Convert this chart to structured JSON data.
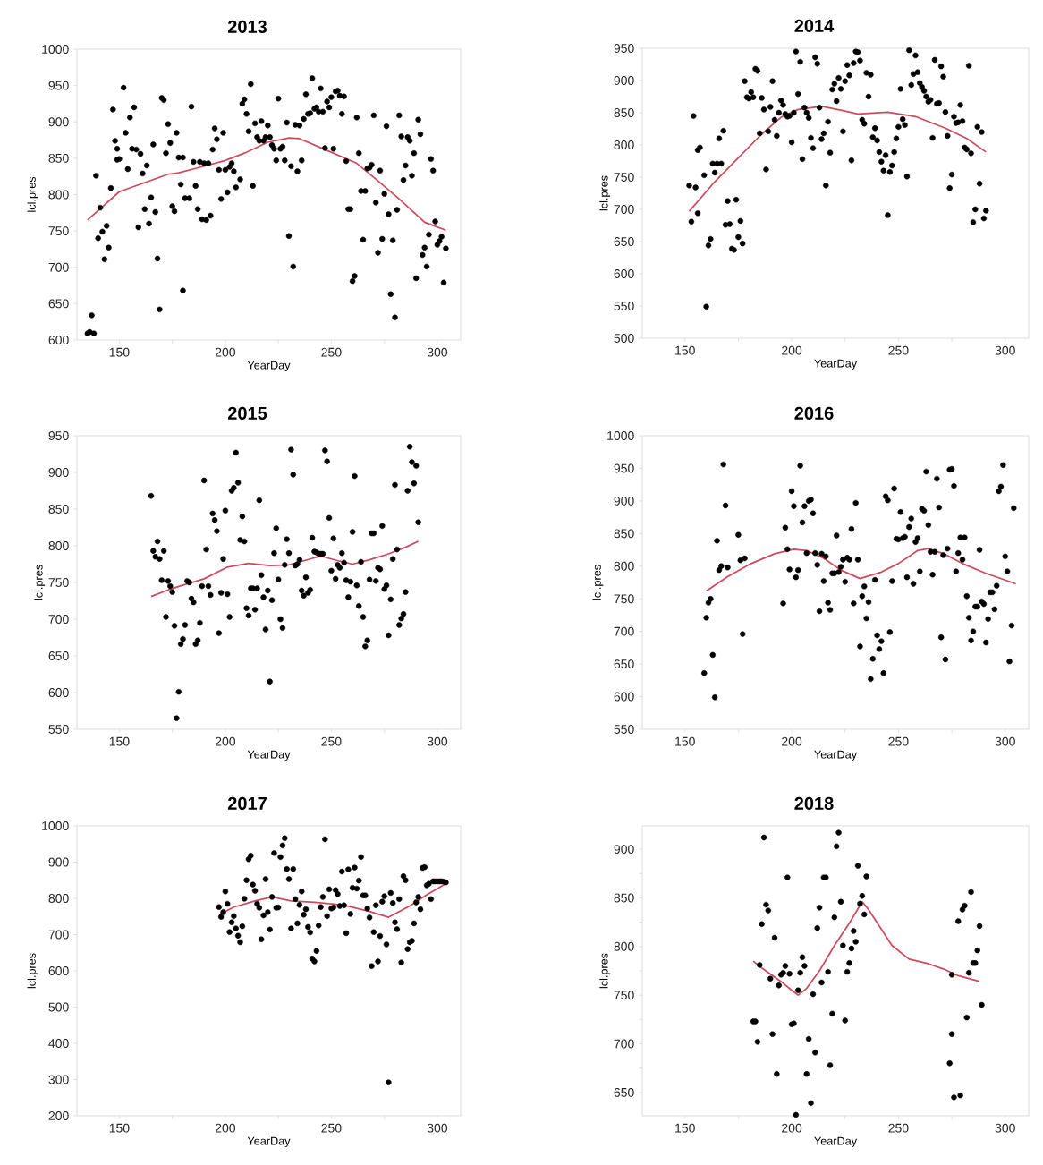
{
  "chart_data": [
    {
      "type": "scatter",
      "title": "2013",
      "xlabel": "YearDay",
      "ylabel": "lcl.pres",
      "xlim": [
        130,
        311
      ],
      "ylim": [
        600,
        1000
      ],
      "xticks": [
        150,
        {
          "value": 175,
          "label": null
        },
        200,
        {
          "value": 225,
          "label": null
        },
        250,
        {
          "value": 275,
          "label": null
        },
        300
      ],
      "yticks": [
        600,
        650,
        700,
        750,
        800,
        850,
        900,
        950,
        1000
      ],
      "series": [
        {
          "type": "scatter",
          "marker": "circle",
          "color": "#000000",
          "x": [
            135,
            136,
            138,
            137,
            139,
            140,
            141,
            142,
            143,
            144,
            145,
            146,
            147,
            148,
            149,
            149,
            150,
            152,
            153,
            154,
            155,
            156,
            157,
            158,
            159,
            160,
            161,
            162,
            163,
            164,
            165,
            166,
            167,
            168,
            169,
            170,
            171,
            172,
            173,
            174,
            175,
            176,
            177,
            178,
            179,
            180,
            180,
            181,
            183,
            184,
            185,
            186,
            187,
            188,
            189,
            190,
            191,
            192,
            193,
            194,
            195,
            196,
            197,
            198,
            199,
            200,
            201,
            202,
            203,
            204,
            205,
            207,
            208,
            209,
            210,
            211,
            212,
            213,
            214,
            215,
            216,
            217,
            218,
            219,
            220,
            221,
            222,
            223,
            224,
            225,
            226,
            227,
            228,
            229,
            230,
            231,
            232,
            233,
            234,
            235,
            236,
            237,
            238,
            239,
            240,
            241,
            242,
            243,
            244,
            245,
            246,
            247,
            248,
            249,
            250,
            251,
            252,
            253,
            254,
            255,
            256,
            257,
            258,
            259,
            260,
            261,
            262,
            263,
            264,
            265,
            266,
            267,
            268,
            269,
            270,
            271,
            272,
            273,
            274,
            275,
            276,
            277,
            278,
            279,
            280,
            281,
            282,
            283,
            284,
            285,
            286,
            287,
            288,
            289,
            290,
            291,
            292,
            293,
            294,
            295,
            296,
            297,
            298,
            299,
            300,
            301,
            302,
            303,
            304
          ],
          "values": [
            609,
            611,
            609,
            634,
            826,
            740,
            782,
            749,
            711,
            757,
            727,
            809,
            917,
            874,
            863,
            848,
            849,
            947,
            885,
            835,
            906,
            863,
            920,
            862,
            755,
            856,
            829,
            780,
            840,
            760,
            796,
            869,
            776,
            712,
            642,
            933,
            930,
            857,
            897,
            871,
            784,
            777,
            885,
            851,
            814,
            668,
            851,
            795,
            795,
            921,
            845,
            812,
            780,
            845,
            766,
            843,
            765,
            843,
            771,
            862,
            891,
            876,
            834,
            794,
            885,
            834,
            803,
            838,
            843,
            832,
            810,
            821,
            925,
            931,
            911,
            887,
            952,
            812,
            898,
            879,
            874,
            901,
            874,
            879,
            895,
            879,
            868,
            863,
            847,
            932,
            863,
            866,
            847,
            899,
            743,
            839,
            701,
            896,
            832,
            895,
            847,
            904,
            938,
            911,
            912,
            960,
            918,
            920,
            914,
            946,
            914,
            864,
            928,
            920,
            934,
            863,
            942,
            943,
            936,
            911,
            935,
            846,
            780,
            780,
            681,
            688,
            906,
            857,
            805,
            738,
            805,
            836,
            837,
            841,
            909,
            789,
            720,
            833,
            739,
            801,
            894,
            773,
            663,
            737,
            631,
            779,
            909,
            880,
            820,
            840,
            879,
            874,
            826,
            857,
            685,
            903,
            883,
            717,
            727,
            701,
            745,
            849,
            833,
            763,
            731,
            736,
            742,
            679,
            726
          ]
        },
        {
          "type": "line",
          "marker": "none",
          "color": "#cf4a5e",
          "x": [
            135,
            150,
            173,
            178,
            186,
            200,
            209,
            220,
            230,
            235,
            247,
            262,
            272,
            282,
            294,
            304
          ],
          "values": [
            765,
            804,
            828,
            830,
            836,
            847,
            857,
            872,
            878,
            877,
            862,
            843,
            819,
            794,
            762,
            751
          ]
        }
      ]
    },
    {
      "type": "scatter",
      "title": "2014",
      "xlabel": "YearDay",
      "ylabel": "lcl.pres",
      "xlim": [
        130,
        311
      ],
      "ylim": [
        500,
        950
      ],
      "xticks": [
        150,
        {
          "value": 175,
          "label": null
        },
        200,
        {
          "value": 225,
          "label": null
        },
        250,
        {
          "value": 275,
          "label": null
        },
        300
      ],
      "yticks": [
        500,
        550,
        600,
        650,
        700,
        750,
        800,
        850,
        900,
        950
      ],
      "series": [
        {
          "type": "scatter",
          "marker": "circle",
          "color": "#000000",
          "x": [
            152,
            153,
            154,
            155,
            156,
            156,
            157,
            159,
            160,
            161,
            162,
            163,
            164,
            165,
            166,
            167,
            168,
            170,
            169,
            171,
            172,
            173,
            174,
            175,
            176,
            177,
            178,
            179,
            180,
            181,
            182,
            183,
            184,
            185,
            186,
            187,
            188,
            189,
            190,
            191,
            192,
            193,
            194,
            195,
            196,
            197,
            198,
            199,
            200,
            201,
            202,
            203,
            204,
            205,
            206,
            207,
            208,
            209,
            210,
            211,
            212,
            213,
            214,
            215,
            216,
            217,
            218,
            219,
            220,
            221,
            222,
            223,
            224,
            225,
            226,
            227,
            228,
            229,
            230,
            231,
            232,
            233,
            234,
            235,
            236,
            237,
            238,
            239,
            240,
            241,
            242,
            243,
            244,
            245,
            246,
            247,
            248,
            249,
            250,
            251,
            252,
            253,
            254,
            255,
            256,
            257,
            258,
            259,
            260,
            261,
            262,
            263,
            264,
            265,
            266,
            267,
            268,
            269,
            270,
            271,
            272,
            273,
            274,
            275,
            276,
            277,
            278,
            279,
            280,
            281,
            282,
            283,
            284,
            285,
            286,
            287,
            288,
            289,
            290,
            291
          ],
          "values": [
            737,
            681,
            845,
            734,
            694,
            792,
            796,
            753,
            549,
            644,
            654,
            771,
            757,
            771,
            810,
            771,
            822,
            713,
            676,
            677,
            639,
            637,
            715,
            657,
            682,
            647,
            899,
            874,
            872,
            882,
            874,
            918,
            915,
            818,
            873,
            855,
            762,
            821,
            859,
            899,
            839,
            814,
            850,
            869,
            862,
            848,
            844,
            845,
            804,
            850,
            945,
            879,
            929,
            778,
            858,
            850,
            842,
            811,
            795,
            936,
            926,
            858,
            809,
            818,
            737,
            836,
            788,
            886,
            895,
            868,
            904,
            887,
            821,
            899,
            924,
            908,
            776,
            927,
            945,
            944,
            931,
            839,
            833,
            912,
            875,
            909,
            812,
            826,
            807,
            789,
            774,
            760,
            784,
            691,
            758,
            768,
            789,
            810,
            828,
            887,
            840,
            831,
            751,
            947,
            893,
            910,
            939,
            913,
            896,
            890,
            884,
            875,
            867,
            870,
            811,
            932,
            864,
            865,
            922,
            906,
            851,
            814,
            733,
            754,
            844,
            834,
            835,
            862,
            837,
            796,
            793,
            923,
            787,
            680,
            700,
            828,
            740,
            820,
            686,
            698
          ]
        },
        {
          "type": "line",
          "marker": "none",
          "color": "#cf4a5e",
          "x": [
            152,
            164,
            175,
            186,
            195,
            203,
            214,
            223,
            231,
            245,
            258,
            272,
            282,
            291
          ],
          "values": [
            697,
            743,
            780,
            817,
            843,
            855,
            860,
            854,
            848,
            851,
            844,
            826,
            810,
            789
          ]
        }
      ]
    },
    {
      "type": "scatter",
      "title": "2015",
      "xlabel": "YearDay",
      "ylabel": "lcl.pres",
      "xlim": [
        130,
        311
      ],
      "ylim": [
        550,
        950
      ],
      "xticks": [
        150,
        {
          "value": 175,
          "label": null
        },
        200,
        {
          "value": 225,
          "label": null
        },
        250,
        {
          "value": 275,
          "label": null
        },
        300
      ],
      "yticks": [
        550,
        600,
        650,
        700,
        750,
        800,
        850,
        900,
        950
      ],
      "series": [
        {
          "type": "scatter",
          "marker": "circle",
          "color": "#000000",
          "x": [
            165,
            166,
            167,
            168,
            169,
            170,
            171,
            172,
            173,
            174,
            175,
            176,
            177,
            178,
            179,
            180,
            181,
            182,
            183,
            184,
            185,
            186,
            187,
            188,
            189,
            190,
            191,
            192,
            193,
            194,
            195,
            196,
            197,
            198,
            199,
            200,
            201,
            202,
            203,
            204,
            205,
            206,
            207,
            208,
            209,
            210,
            211,
            212,
            213,
            214,
            215,
            216,
            217,
            218,
            219,
            220,
            221,
            222,
            223,
            224,
            225,
            226,
            227,
            228,
            229,
            230,
            231,
            232,
            233,
            234,
            235,
            236,
            237,
            238,
            239,
            240,
            241,
            242,
            243,
            244,
            245,
            246,
            247,
            248,
            249,
            250,
            251,
            252,
            253,
            254,
            255,
            256,
            257,
            258,
            259,
            260,
            261,
            262,
            263,
            264,
            265,
            266,
            267,
            268,
            269,
            270,
            271,
            272,
            273,
            274,
            275,
            276,
            277,
            278,
            279,
            280,
            281,
            282,
            283,
            284,
            285,
            286,
            287,
            288,
            289,
            290,
            291
          ],
          "values": [
            868,
            793,
            785,
            806,
            782,
            753,
            793,
            703,
            752,
            745,
            737,
            691,
            565,
            601,
            666,
            673,
            692,
            752,
            750,
            728,
            723,
            666,
            671,
            695,
            745,
            889,
            795,
            745,
            733,
            844,
            835,
            820,
            681,
            736,
            782,
            848,
            734,
            703,
            875,
            879,
            927,
            886,
            808,
            840,
            806,
            715,
            705,
            742,
            742,
            713,
            742,
            862,
            760,
            730,
            686,
            739,
            615,
            726,
            790,
            824,
            754,
            700,
            688,
            774,
            809,
            790,
            931,
            897,
            773,
            775,
            781,
            739,
            732,
            757,
            736,
            740,
            811,
            792,
            791,
            789,
            789,
            789,
            930,
            915,
            838,
            766,
            810,
            755,
            774,
            770,
            790,
            777,
            753,
            730,
            751,
            819,
            895,
            746,
            718,
            778,
            703,
            663,
            671,
            754,
            817,
            817,
            752,
            770,
            768,
            827,
            741,
            746,
            678,
            727,
            782,
            883,
            795,
            692,
            701,
            707,
            737,
            875,
            935,
            914,
            885,
            909,
            832
          ]
        },
        {
          "type": "line",
          "marker": "none",
          "color": "#cf4a5e",
          "x": [
            165,
            175,
            190,
            201,
            211,
            221,
            230,
            240,
            245,
            254,
            260,
            268,
            277,
            285,
            291
          ],
          "values": [
            731,
            742,
            755,
            771,
            776,
            773,
            774,
            782,
            786,
            779,
            775,
            781,
            789,
            798,
            806
          ]
        }
      ]
    },
    {
      "type": "scatter",
      "title": "2016",
      "xlabel": "YearDay",
      "ylabel": "lcl.pres",
      "xlim": [
        130,
        311
      ],
      "ylim": [
        550,
        1000
      ],
      "xticks": [
        150,
        {
          "value": 175,
          "label": null
        },
        200,
        {
          "value": 225,
          "label": null
        },
        250,
        {
          "value": 275,
          "label": null
        },
        300
      ],
      "yticks": [
        550,
        600,
        650,
        700,
        750,
        800,
        850,
        900,
        950,
        1000
      ],
      "series": [
        {
          "type": "scatter",
          "marker": "circle",
          "color": "#000000",
          "x": [
            159,
            160,
            161,
            162,
            163,
            164,
            165,
            166,
            167,
            168,
            169,
            170,
            175,
            176,
            178,
            177,
            196,
            197,
            198,
            199,
            200,
            201,
            202,
            203,
            204,
            205,
            206,
            207,
            208,
            209,
            210,
            211,
            212,
            213,
            214,
            215,
            216,
            217,
            218,
            219,
            220,
            221,
            222,
            223,
            224,
            225,
            226,
            227,
            228,
            229,
            230,
            231,
            232,
            233,
            234,
            235,
            236,
            237,
            238,
            239,
            240,
            241,
            242,
            243,
            244,
            245,
            246,
            247,
            248,
            249,
            250,
            251,
            252,
            253,
            254,
            255,
            256,
            257,
            258,
            259,
            260,
            261,
            262,
            263,
            264,
            265,
            266,
            267,
            268,
            269,
            270,
            271,
            272,
            273,
            274,
            275,
            276,
            277,
            278,
            279,
            280,
            281,
            282,
            283,
            284,
            285,
            286,
            287,
            288,
            289,
            290,
            291,
            292,
            293,
            294,
            295,
            296,
            297,
            298,
            299,
            300,
            301,
            302,
            303,
            304
          ],
          "values": [
            636,
            721,
            744,
            750,
            664,
            599,
            839,
            794,
            800,
            956,
            893,
            798,
            848,
            809,
            812,
            696,
            743,
            859,
            826,
            795,
            915,
            892,
            783,
            794,
            954,
            867,
            892,
            820,
            900,
            902,
            881,
            820,
            802,
            731,
            819,
            777,
            815,
            744,
            733,
            789,
            789,
            847,
            791,
            799,
            810,
            776,
            813,
            810,
            857,
            743,
            897,
            810,
            677,
            754,
            769,
            720,
            745,
            627,
            658,
            779,
            694,
            673,
            685,
            636,
            907,
            901,
            699,
            777,
            919,
            842,
            841,
            883,
            843,
            845,
            783,
            860,
            873,
            773,
            837,
            843,
            792,
            888,
            885,
            945,
            863,
            822,
            787,
            822,
            934,
            890,
            691,
            817,
            657,
            827,
            948,
            949,
            923,
            792,
            820,
            844,
            810,
            844,
            754,
            721,
            686,
            700,
            738,
            738,
            825,
            746,
            742,
            683,
            719,
            760,
            760,
            734,
            770,
            915,
            922,
            955,
            815,
            792,
            654,
            709,
            889
          ]
        },
        {
          "type": "line",
          "marker": "none",
          "color": "#cf4a5e",
          "x": [
            160,
            170,
            181,
            192,
            201,
            207,
            215,
            223,
            232,
            242,
            250,
            259,
            264,
            272,
            280,
            291,
            305
          ],
          "values": [
            762,
            784,
            804,
            819,
            826,
            824,
            812,
            794,
            781,
            791,
            804,
            824,
            827,
            818,
            804,
            789,
            773
          ]
        }
      ]
    },
    {
      "type": "scatter",
      "title": "2017",
      "xlabel": "YearDay",
      "ylabel": "lcl.pres",
      "xlim": [
        130,
        311
      ],
      "ylim": [
        200,
        1000
      ],
      "xticks": [
        150,
        {
          "value": 175,
          "label": null
        },
        200,
        {
          "value": 225,
          "label": null
        },
        250,
        {
          "value": 275,
          "label": null
        },
        300
      ],
      "yticks": [
        200,
        300,
        400,
        500,
        600,
        700,
        800,
        900,
        1000
      ],
      "series": [
        {
          "type": "scatter",
          "marker": "circle",
          "color": "#000000",
          "x": [
            197,
            198,
            199,
            200,
            201,
            202,
            203,
            204,
            205,
            206,
            207,
            208,
            209,
            210,
            211,
            212,
            213,
            214,
            215,
            216,
            217,
            218,
            219,
            220,
            221,
            222,
            223,
            224,
            225,
            226,
            227,
            228,
            229,
            230,
            231,
            232,
            233,
            234,
            235,
            236,
            237,
            238,
            239,
            240,
            241,
            242,
            243,
            244,
            245,
            246,
            247,
            248,
            249,
            250,
            251,
            252,
            253,
            254,
            255,
            256,
            257,
            258,
            259,
            260,
            261,
            262,
            263,
            264,
            265,
            266,
            267,
            268,
            269,
            270,
            271,
            272,
            273,
            274,
            275,
            276,
            277,
            278,
            279,
            280,
            281,
            282,
            283,
            284,
            285,
            286,
            287,
            288,
            289,
            290,
            291,
            292,
            293,
            294,
            295,
            296,
            297,
            298,
            299,
            300,
            301,
            302,
            303,
            304
          ],
          "values": [
            776,
            749,
            762,
            819,
            785,
            707,
            734,
            751,
            717,
            697,
            679,
            723,
            799,
            850,
            908,
            918,
            838,
            821,
            785,
            774,
            687,
            753,
            853,
            762,
            714,
            804,
            925,
            774,
            775,
            914,
            946,
            966,
            881,
            853,
            717,
            881,
            798,
            731,
            782,
            819,
            755,
            770,
            721,
            706,
            634,
            626,
            655,
            725,
            776,
            804,
            963,
            751,
            825,
            772,
            775,
            823,
            812,
            779,
            874,
            781,
            704,
            880,
            757,
            829,
            885,
            827,
            849,
            914,
            808,
            808,
            772,
            747,
            613,
            707,
            781,
            626,
            696,
            791,
            806,
            673,
            292,
            815,
            787,
            734,
            715,
            798,
            623,
            861,
            850,
            660,
            679,
            683,
            731,
            789,
            804,
            770,
            884,
            886,
            836,
            840,
            798,
            847,
            847,
            847,
            847,
            847,
            846,
            844
          ]
        },
        {
          "type": "line",
          "marker": "none",
          "color": "#cf4a5e",
          "x": [
            197,
            204,
            214,
            222,
            231,
            242,
            250,
            256,
            268,
            277,
            287,
            295,
            305
          ],
          "values": [
            755,
            776,
            793,
            804,
            793,
            789,
            785,
            781,
            764,
            748,
            779,
            810,
            844
          ]
        }
      ]
    },
    {
      "type": "scatter",
      "title": "2018",
      "xlabel": "YearDay",
      "ylabel": "lcl.pres",
      "xlim": [
        130,
        311
      ],
      "ylim": [
        626,
        924
      ],
      "xticks": [
        150,
        {
          "value": 175,
          "label": null
        },
        200,
        {
          "value": 225,
          "label": null
        },
        250,
        {
          "value": 275,
          "label": null
        },
        300
      ],
      "yticks": [
        650,
        {
          "value": 675,
          "label": null
        },
        700,
        {
          "value": 725,
          "label": null
        },
        750,
        {
          "value": 775,
          "label": null
        },
        800,
        {
          "value": 825,
          "label": null
        },
        850,
        {
          "value": 875,
          "label": null
        },
        900
      ],
      "series": [
        {
          "type": "scatter",
          "marker": "circle",
          "color": "#000000",
          "x": [
            182,
            183,
            184,
            185,
            186,
            187,
            188,
            189,
            190,
            191,
            192,
            193,
            194,
            195,
            196,
            197,
            198,
            199,
            200,
            201,
            202,
            203,
            204,
            205,
            206,
            207,
            208,
            209,
            210,
            211,
            212,
            213,
            214,
            215,
            216,
            217,
            218,
            219,
            220,
            221,
            222,
            223,
            224,
            225,
            226,
            227,
            228,
            229,
            230,
            231,
            232,
            233,
            234,
            235,
            274,
            275,
            275,
            276,
            278,
            279,
            280,
            281,
            282,
            283,
            284,
            285,
            286,
            287,
            288,
            289
          ],
          "values": [
            723,
            723,
            702,
            781,
            823,
            912,
            843,
            837,
            767,
            710,
            809,
            669,
            760,
            771,
            773,
            780,
            871,
            772,
            720,
            721,
            627,
            755,
            773,
            789,
            780,
            669,
            705,
            639,
            751,
            691,
            819,
            840,
            763,
            871,
            871,
            774,
            678,
            731,
            830,
            903,
            917,
            846,
            801,
            724,
            774,
            783,
            798,
            816,
            805,
            883,
            844,
            852,
            833,
            872,
            680,
            710,
            771,
            645,
            826,
            647,
            838,
            842,
            727,
            773,
            856,
            783,
            783,
            796,
            821,
            740
          ]
        },
        {
          "type": "line",
          "marker": "none",
          "color": "#cf4a5e",
          "x": [
            182,
            186,
            195,
            200,
            203,
            207,
            213,
            220,
            227,
            233,
            236,
            247,
            255,
            263,
            271,
            278,
            288
          ],
          "values": [
            785,
            778,
            764,
            755,
            750,
            757,
            775,
            801,
            824,
            846,
            838,
            801,
            787,
            783,
            777,
            770,
            764
          ]
        }
      ]
    }
  ]
}
